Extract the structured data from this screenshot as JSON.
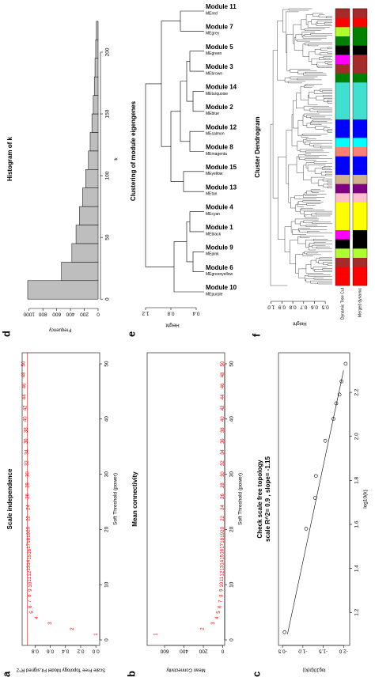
{
  "chart_data": [
    {
      "type": "scatter",
      "panel_label": "a",
      "title": "Scale independence",
      "xlabel": "Soft Threshold (power)",
      "ylabel": "Scale Free Topology Model Fit,signed R^2",
      "marker": "number",
      "color": "red",
      "x": [
        1,
        2,
        3,
        4,
        5,
        6,
        7,
        8,
        9,
        10,
        11,
        12,
        13,
        14,
        15,
        16,
        17,
        18,
        19,
        20,
        22,
        24,
        26,
        28,
        30,
        32,
        34,
        36,
        38,
        40,
        42,
        44,
        46,
        48,
        50
      ],
      "values": [
        0.0,
        0.31,
        0.6,
        0.78,
        0.84,
        0.86,
        0.87,
        0.87,
        0.86,
        0.86,
        0.87,
        0.87,
        0.88,
        0.88,
        0.87,
        0.87,
        0.88,
        0.88,
        0.88,
        0.89,
        0.89,
        0.89,
        0.9,
        0.9,
        0.9,
        0.91,
        0.91,
        0.92,
        0.92,
        0.93,
        0.93,
        0.94,
        0.94,
        0.95,
        0.95
      ],
      "cutoff": 0.9,
      "cutoff_color": "red",
      "xlim": [
        -1,
        52
      ],
      "xticks": [
        0,
        10,
        20,
        30,
        40,
        50
      ],
      "ylim": [
        -0.05,
        0.97
      ],
      "yticks": [
        {
          "value": 0,
          "label": "0.0"
        },
        0.2,
        0.4,
        0.6,
        0.8
      ]
    },
    {
      "type": "scatter",
      "panel_label": "b",
      "title": "Mean connectivity",
      "xlabel": "Soft Threshold (power)",
      "ylabel": "Mean Connectivity",
      "marker": "number",
      "color": "red",
      "x": [
        1,
        2,
        3,
        4,
        5,
        6,
        7,
        8,
        9,
        10,
        11,
        12,
        13,
        14,
        15,
        16,
        17,
        18,
        19,
        20,
        22,
        24,
        26,
        28,
        30,
        32,
        34,
        36,
        38,
        40,
        42,
        44,
        46,
        48,
        50
      ],
      "values": [
        690,
        210,
        100,
        60,
        40,
        28,
        20,
        15,
        12,
        9.5,
        8,
        6.5,
        5.5,
        4.8,
        4.2,
        3.7,
        3.3,
        3,
        2.7,
        2.4,
        2,
        1.7,
        1.5,
        1.3,
        1.2,
        1.1,
        1,
        0.9,
        0.8,
        0.75,
        0.7,
        0.65,
        0.6,
        0.55,
        0.5
      ],
      "xlim": [
        -1,
        52
      ],
      "xticks": [
        0,
        10,
        20,
        30,
        40,
        50
      ],
      "ylim": [
        -20,
        780
      ],
      "yticks": [
        0,
        200,
        400,
        600
      ]
    },
    {
      "type": "scatter",
      "panel_label": "c",
      "title": "Check scale free topology",
      "subtitle": "scale R^2= 0.9 , slope= -1.15",
      "xlabel": "log10(k)",
      "ylabel": "log10(p(k))",
      "marker": "circle",
      "color": "black",
      "x": [
        1.11,
        1.58,
        1.72,
        1.82,
        1.98,
        2.08,
        2.15,
        2.19,
        2.25,
        2.33
      ],
      "values": [
        -0.55,
        -1.08,
        -1.3,
        -1.32,
        -1.55,
        -1.75,
        -1.82,
        -1.9,
        -1.95,
        -2.05
      ],
      "fit_x": [
        1.1,
        2.3
      ],
      "fit_y": [
        -0.62,
        -2.0
      ],
      "fit_color": "black",
      "xlim": [
        1.05,
        2.38
      ],
      "xticks": [
        1.2,
        1.4,
        1.6,
        1.8,
        {
          "value": 2,
          "label": "2.0"
        },
        2.2
      ],
      "ylim": [
        -2.15,
        -0.4
      ],
      "yticks": [
        -0.5,
        {
          "value": -1,
          "label": "-1.0"
        },
        -1.5,
        {
          "value": -2,
          "label": "-2.0"
        }
      ]
    },
    {
      "type": "histogram",
      "panel_label": "d",
      "title": "Histogram of k",
      "xlabel": "k",
      "ylabel": "Frequency",
      "color": "#bebebe",
      "bins": [
        0,
        15,
        30,
        45,
        60,
        75,
        90,
        105,
        120,
        135,
        150,
        165,
        180,
        195,
        210,
        225
      ],
      "values": [
        1020,
        530,
        380,
        320,
        270,
        225,
        180,
        140,
        115,
        90,
        70,
        55,
        45,
        35,
        25
      ],
      "xlim": [
        -5,
        232
      ],
      "xticks": [
        0,
        50,
        100,
        150,
        200
      ],
      "ylim": [
        0,
        1100
      ],
      "yticks": [
        0,
        200,
        400,
        600,
        800,
        1000
      ]
    },
    {
      "type": "dendrogram",
      "panel_label": "e",
      "title": "Clustering of module eigengenes",
      "ylabel": "Height",
      "leaves": [
        {
          "eigengene": "MEpurple",
          "module": "Module 10"
        },
        {
          "eigengene": "MEgreenyellow",
          "module": "Module 6"
        },
        {
          "eigengene": "MEpink",
          "module": "Module 9"
        },
        {
          "eigengene": "MEblack",
          "module": "Module 1"
        },
        {
          "eigengene": "MEcyan",
          "module": "Module 4"
        },
        {
          "eigengene": "MEtan",
          "module": "Module 13"
        },
        {
          "eigengene": "MEyellow",
          "module": "Module 15"
        },
        {
          "eigengene": "MEmagenta",
          "module": "Module 8"
        },
        {
          "eigengene": "MEsalmon",
          "module": "Module 12"
        },
        {
          "eigengene": "MEblue",
          "module": "Module 2"
        },
        {
          "eigengene": "MEturquoise",
          "module": "Module 14"
        },
        {
          "eigengene": "MEbrown",
          "module": "Module 3"
        },
        {
          "eigengene": "MEgreen",
          "module": "Module 5"
        },
        {
          "eigengene": "MEgrey",
          "module": "Module 7"
        },
        {
          "eigengene": "MEred",
          "module": "Module 11"
        }
      ],
      "merges": [
        {
          "left": 1,
          "right": 2,
          "height": 0.45
        },
        {
          "left": 3,
          "right": 4,
          "height": 0.5
        },
        {
          "left": 15,
          "right": 16,
          "height": 0.55
        },
        {
          "left": 0,
          "right": 17,
          "height": 0.75
        },
        {
          "left": 5,
          "right": 6,
          "height": 0.6
        },
        {
          "left": 7,
          "right": 8,
          "height": 0.5
        },
        {
          "left": 9,
          "right": 10,
          "height": 0.45
        },
        {
          "left": 11,
          "right": 12,
          "height": 0.5
        },
        {
          "left": 21,
          "right": 22,
          "height": 0.55
        },
        {
          "left": 20,
          "right": 23,
          "height": 0.65
        },
        {
          "left": 19,
          "right": 24,
          "height": 0.8
        },
        {
          "left": 13,
          "right": 14,
          "height": 0.65
        },
        {
          "left": 25,
          "right": 26,
          "height": 0.95
        },
        {
          "left": 18,
          "right": 27,
          "height": 1.2
        }
      ],
      "ylim": [
        0.3,
        1.25
      ],
      "yticks": [
        0.4,
        0.8,
        1.2
      ]
    },
    {
      "type": "genetree",
      "panel_label": "f",
      "title": "Cluster Dendrogram",
      "ylabel": "Height",
      "ylim": [
        0.45,
        1.02
      ],
      "yticks": [
        0.5,
        0.6,
        0.7,
        0.8,
        0.9,
        {
          "value": 1,
          "label": "1.0"
        }
      ],
      "color_rows": [
        {
          "name": "Dynamic Tree Cut",
          "colors": [
            "red",
            "red",
            "brown",
            "greenyellow",
            "black",
            "magenta",
            "yellow",
            "yellow",
            "yellow",
            "pink",
            "purple",
            "tan",
            "blue",
            "blue",
            "salmon",
            "cyan",
            "blue",
            "blue",
            "turquoise",
            "turquoise",
            "turquoise",
            "turquoise",
            "green",
            "brown",
            "magenta",
            "black",
            "green",
            "greenyellow",
            "red",
            "brown"
          ]
        },
        {
          "name": "Merged dynamic",
          "colors": [
            "red",
            "red",
            "brown",
            "greenyellow",
            "black",
            "black",
            "yellow",
            "yellow",
            "yellow",
            "pink",
            "purple",
            "tan",
            "blue",
            "blue",
            "salmon",
            "cyan",
            "blue",
            "blue",
            "turquoise",
            "turquoise",
            "turquoise",
            "turquoise",
            "green",
            "brown",
            "brown",
            "black",
            "green",
            "green",
            "red",
            "brown"
          ]
        }
      ]
    }
  ]
}
